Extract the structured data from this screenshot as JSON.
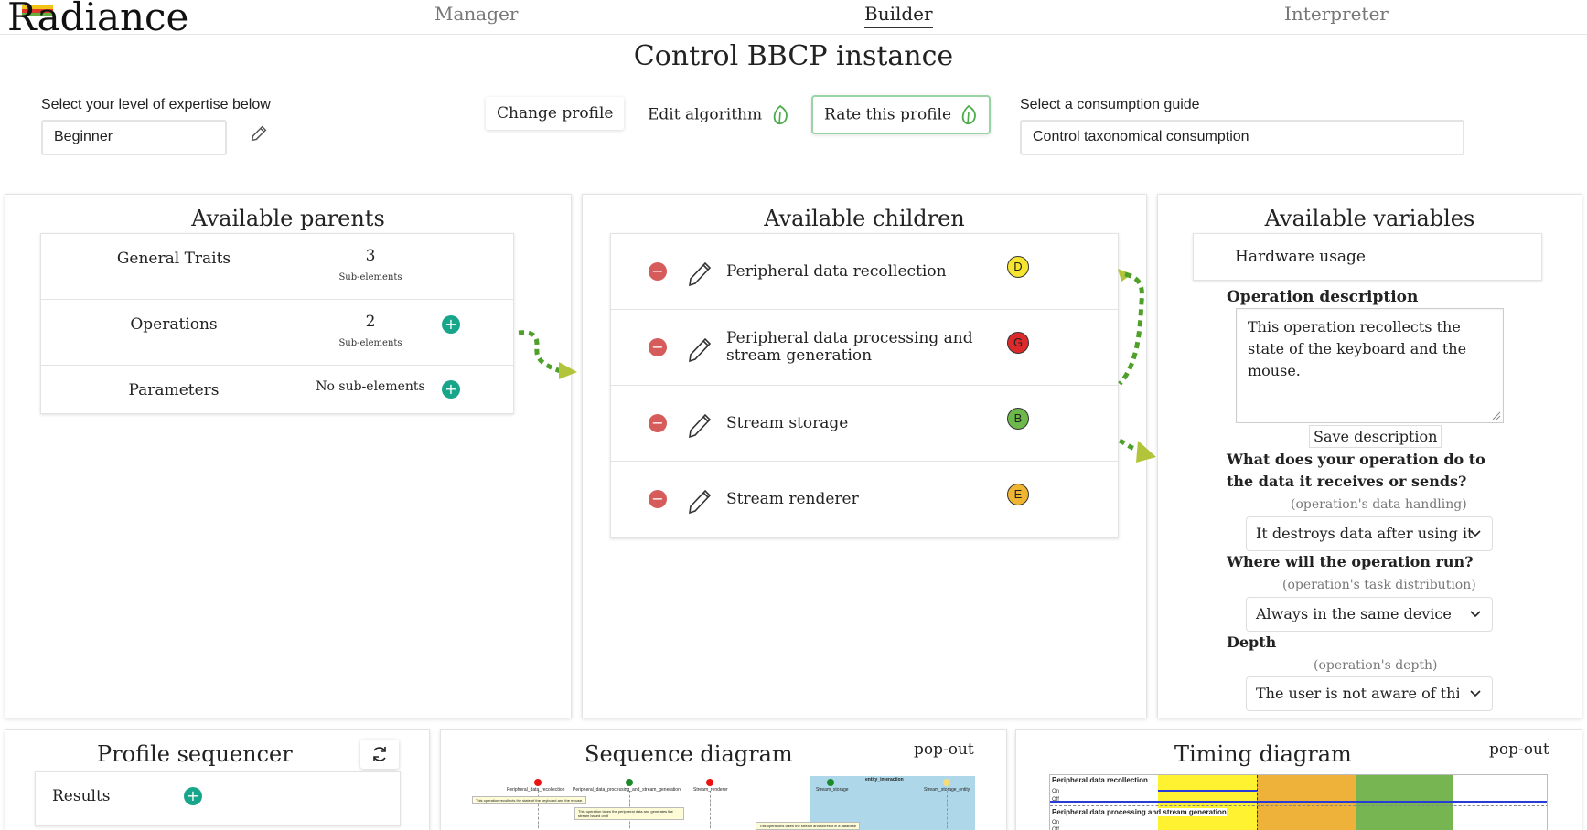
{
  "app": {
    "logo": "Radiance",
    "nav": [
      "Manager",
      "Builder",
      "Interpreter"
    ],
    "active_nav": "Builder"
  },
  "page_title": "Control BBCP instance",
  "expertise": {
    "label": "Select your level of expertise below",
    "value": "Beginner"
  },
  "actions": {
    "change_profile": "Change profile",
    "edit_algorithm": "Edit algorithm",
    "rate_profile": "Rate this profile"
  },
  "guide": {
    "label": "Select a consumption guide",
    "value": "Control taxonomical consumption"
  },
  "parents": {
    "title": "Available parents",
    "items": [
      {
        "name": "General Traits",
        "count": "3",
        "sub": "Sub-elements",
        "add": false
      },
      {
        "name": "Operations",
        "count": "2",
        "sub": "Sub-elements",
        "add": true
      },
      {
        "name": "Parameters",
        "count": "No sub-elements",
        "sub": "",
        "add": true
      }
    ]
  },
  "children": {
    "title": "Available children",
    "items": [
      {
        "name": "Peripheral data recollection",
        "grade": "D",
        "color": "#f5e52e"
      },
      {
        "name": "Peripheral data processing and stream generation",
        "grade": "G",
        "color": "#dc2a2a"
      },
      {
        "name": "Stream storage",
        "grade": "B",
        "color": "#6cb84a"
      },
      {
        "name": "Stream renderer",
        "grade": "E",
        "color": "#f0b433"
      }
    ]
  },
  "variables": {
    "title": "Available variables",
    "item": "Hardware usage",
    "desc_label": "Operation description",
    "desc_value": "This operation recollects the state of the keyboard and the mouse.",
    "save_label": "Save description",
    "q1": "What does your operation do to the data it receives or sends?",
    "q1_hint": "(operation's data handling)",
    "q1_value": "It destroys data after using it",
    "q2": "Where will the operation run?",
    "q2_hint": "(operation's task distribution)",
    "q2_value": "Always in the same device",
    "q3": "Depth",
    "q3_hint": "(operation's depth)",
    "q3_value": "The user is not aware of this c"
  },
  "sequencer": {
    "title": "Profile sequencer",
    "results": "Results"
  },
  "sequence": {
    "title": "Sequence diagram",
    "popout": "pop-out",
    "actors": [
      "Peripheral_data_recollection",
      "Peripheral_data_processing_and_stream_generation",
      "Stream_renderer",
      "Stream_storage",
      "Stream_storage_entity"
    ],
    "group": "entity_interaction",
    "notes": [
      "This operation recollects the state of the keyboard and the mouse.",
      "This operation takes the peripheral data and generates the stream based on it",
      "This operations takes the stream and stores it in a database"
    ]
  },
  "timing": {
    "title": "Timing diagram",
    "popout": "pop-out",
    "rows": [
      "Peripheral data recollection",
      "Peripheral data processing and stream generation"
    ],
    "states": [
      "On",
      "Off"
    ],
    "colors": {
      "yellow": "#fff230",
      "orange": "#eeb13a",
      "green": "#77b552",
      "line": "#2a3cd6"
    }
  },
  "colors": {
    "accent_green": "#17a68a",
    "remove_red": "#d65b5b",
    "arrow": "#7cbd2a"
  }
}
